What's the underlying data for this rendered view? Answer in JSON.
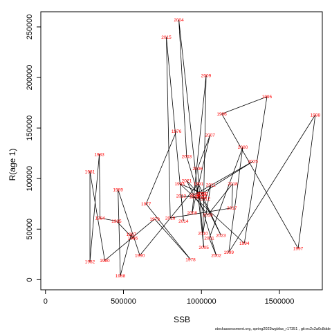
{
  "chart_data": {
    "type": "line",
    "title": "",
    "xlabel": "SSB",
    "ylabel": "R(age 1)",
    "xlim": [
      -30000,
      1775000
    ],
    "ylim": [
      -10000,
      265000
    ],
    "xticks": [
      0,
      500000,
      1000000,
      1500000
    ],
    "xtick_labels": [
      "0",
      "500000",
      "1000000",
      "1500000"
    ],
    "yticks": [
      0,
      50000,
      100000,
      150000,
      200000,
      250000
    ],
    "ytick_labels": [
      "0",
      "50000",
      "100000",
      "150000",
      "200000",
      "250000"
    ],
    "grid": false,
    "legend": "none",
    "line_color": "#000000",
    "label_color": "#ff0000",
    "points": [
      {
        "year": "1976",
        "x": 840000,
        "y": 147000
      },
      {
        "year": "1977",
        "x": 645000,
        "y": 75000
      },
      {
        "year": "1978",
        "x": 930000,
        "y": 20000
      },
      {
        "year": "1979",
        "x": 700000,
        "y": 60000
      },
      {
        "year": "1980",
        "x": 380000,
        "y": 19000
      },
      {
        "year": "1981",
        "x": 285000,
        "y": 107000
      },
      {
        "year": "1982",
        "x": 285000,
        "y": 18000
      },
      {
        "year": "1983",
        "x": 345000,
        "y": 124000
      },
      {
        "year": "1984",
        "x": 350000,
        "y": 61000
      },
      {
        "year": "1985",
        "x": 455000,
        "y": 58000
      },
      {
        "year": "1986",
        "x": 560000,
        "y": 41000
      },
      {
        "year": "1987",
        "x": 550000,
        "y": 45000
      },
      {
        "year": "1988",
        "x": 480000,
        "y": 4000
      },
      {
        "year": "1989",
        "x": 465000,
        "y": 89000
      },
      {
        "year": "1990",
        "x": 605000,
        "y": 24000
      },
      {
        "year": "1991",
        "x": 980000,
        "y": 95000
      },
      {
        "year": "1992",
        "x": 1010000,
        "y": 85000
      },
      {
        "year": "1993",
        "x": 860000,
        "y": 95000
      },
      {
        "year": "1994",
        "x": 1275000,
        "y": 36000
      },
      {
        "year": "1995",
        "x": 1420000,
        "y": 181000
      },
      {
        "year": "1996",
        "x": 1130000,
        "y": 164000
      },
      {
        "year": "1997",
        "x": 1620000,
        "y": 31000
      },
      {
        "year": "1998",
        "x": 1730000,
        "y": 163000
      },
      {
        "year": "1999",
        "x": 1175000,
        "y": 27000
      },
      {
        "year": "2000",
        "x": 1265000,
        "y": 131000
      },
      {
        "year": "2001",
        "x": 1050000,
        "y": 41000
      },
      {
        "year": "2002",
        "x": 1095000,
        "y": 24000
      },
      {
        "year": "2003",
        "x": 905000,
        "y": 122000
      },
      {
        "year": "2004",
        "x": 855000,
        "y": 257000
      },
      {
        "year": "2005",
        "x": 1015000,
        "y": 32000
      },
      {
        "year": "2006",
        "x": 975000,
        "y": 110000
      },
      {
        "year": "2007",
        "x": 1055000,
        "y": 143000
      },
      {
        "year": "2008",
        "x": 940000,
        "y": 66000
      },
      {
        "year": "2009",
        "x": 1030000,
        "y": 202000
      },
      {
        "year": "2010",
        "x": 1010000,
        "y": 46000
      },
      {
        "year": "2011",
        "x": 1060000,
        "y": 94000
      },
      {
        "year": "2012",
        "x": 1025000,
        "y": 80000
      },
      {
        "year": "2013",
        "x": 870000,
        "y": 83000
      },
      {
        "year": "2014",
        "x": 885000,
        "y": 58000
      },
      {
        "year": "2015",
        "x": 775000,
        "y": 240000
      },
      {
        "year": "2016",
        "x": 800000,
        "y": 61000
      },
      {
        "year": "2017",
        "x": 1195000,
        "y": 71000
      },
      {
        "year": "2018",
        "x": 1200000,
        "y": 95000
      },
      {
        "year": "2019",
        "x": 1040000,
        "y": 64000
      },
      {
        "year": "2020",
        "x": 955000,
        "y": 82000
      },
      {
        "year": "2021",
        "x": 905000,
        "y": 98000
      },
      {
        "year": "2022",
        "x": 1000000,
        "y": 82000
      },
      {
        "year": "2023",
        "x": 1125000,
        "y": 44000
      },
      {
        "year": "2024",
        "x": 1000000,
        "y": 85000
      },
      {
        "year": "2025",
        "x": 1330000,
        "y": 117000
      },
      {
        "year": "2026",
        "x": 955000,
        "y": 84000
      }
    ]
  },
  "footer": "stockassessment.org, spring2023wgbfas_r17351 , git:ec2c2a0c8dde"
}
